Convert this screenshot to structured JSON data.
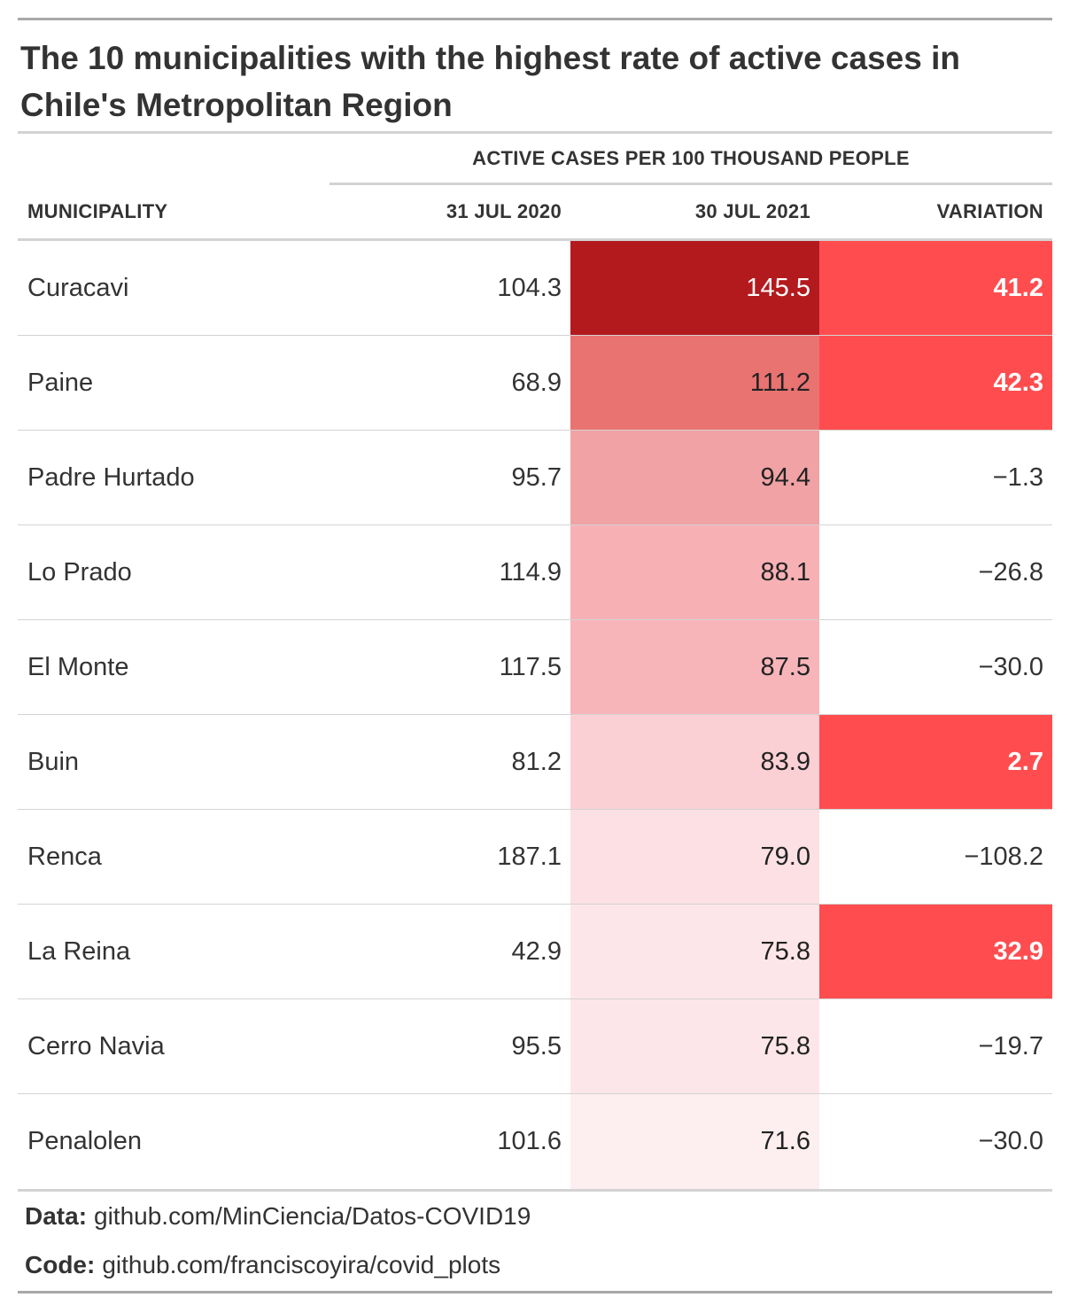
{
  "title": "The 10 municipalities with the highest rate of active cases in Chile's Metropolitan Region",
  "spanner": "ACTIVE CASES PER 100 THOUSAND PEOPLE",
  "columns": {
    "municipality": "MUNICIPALITY",
    "date1": "31 JUL 2020",
    "date2": "30 JUL 2021",
    "variation": "VARIATION"
  },
  "chart_data": {
    "type": "table",
    "columns": [
      "MUNICIPALITY",
      "31 JUL 2020",
      "30 JUL 2021",
      "VARIATION"
    ],
    "rows": [
      {
        "municipality": "Curacavi",
        "v2020": 104.3,
        "v2021": 145.5,
        "variation": 41.2
      },
      {
        "municipality": "Paine",
        "v2020": 68.9,
        "v2021": 111.2,
        "variation": 42.3
      },
      {
        "municipality": "Padre Hurtado",
        "v2020": 95.7,
        "v2021": 94.4,
        "variation": -1.3
      },
      {
        "municipality": "Lo Prado",
        "v2020": 114.9,
        "v2021": 88.1,
        "variation": -26.8
      },
      {
        "municipality": "El Monte",
        "v2020": 117.5,
        "v2021": 87.5,
        "variation": -30.0
      },
      {
        "municipality": "Buin",
        "v2020": 81.2,
        "v2021": 83.9,
        "variation": 2.7
      },
      {
        "municipality": "Renca",
        "v2020": 187.1,
        "v2021": 79.0,
        "variation": -108.2
      },
      {
        "municipality": "La Reina",
        "v2020": 42.9,
        "v2021": 75.8,
        "variation": 32.9
      },
      {
        "municipality": "Cerro Navia",
        "v2020": 95.5,
        "v2021": 75.8,
        "variation": -19.7
      },
      {
        "municipality": "Penalolen",
        "v2020": 101.6,
        "v2021": 71.6,
        "variation": -30.0
      }
    ],
    "colors": {
      "positive_variation": "#ff4d4f",
      "scale_2021_high": "#b31a1e",
      "scale_2021_low": "#fdeef0"
    }
  },
  "footer": {
    "data_label": "Data:",
    "data_value": "github.com/MinCiencia/Datos-COVID19",
    "code_label": "Code:",
    "code_value": "github.com/franciscoyira/covid_plots"
  }
}
